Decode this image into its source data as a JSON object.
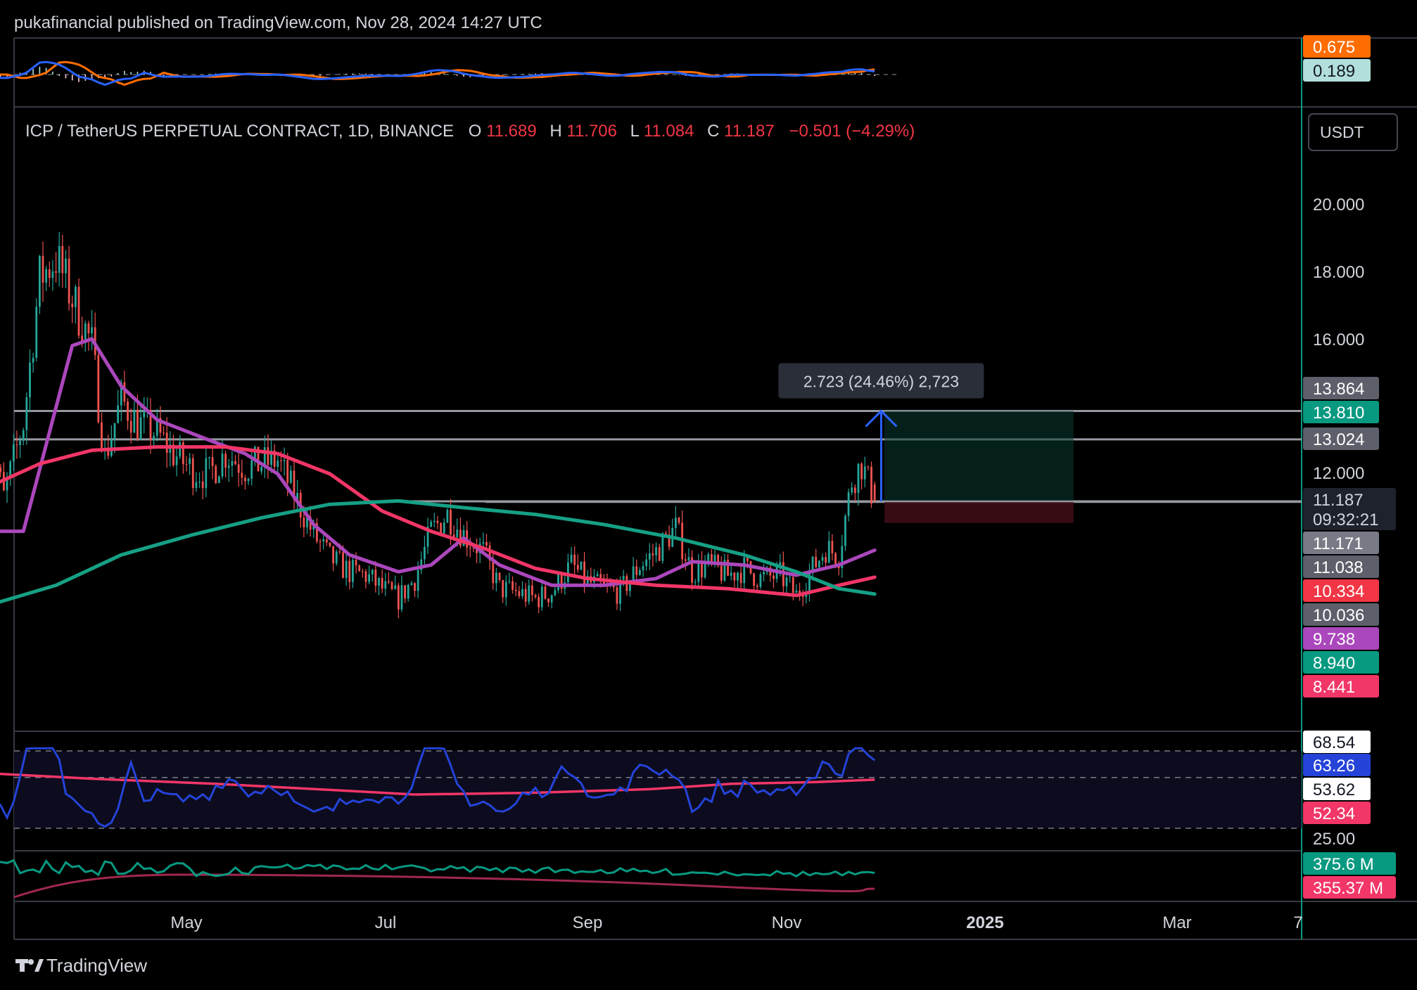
{
  "header": {
    "published": "pukafinancial published on TradingView.com, Nov 28, 2024 14:27 UTC"
  },
  "footer": {
    "brand": "TradingView"
  },
  "symbol": {
    "name": "ICP / TetherUS PERPETUAL CONTRACT, 1D, BINANCE",
    "o_label": "O",
    "o": "11.689",
    "h_label": "H",
    "h": "11.706",
    "l_label": "L",
    "l": "11.084",
    "c_label": "C",
    "c": "11.187",
    "change": "−0.501 (−4.29%)",
    "currency": "USDT"
  },
  "colors": {
    "bg": "#000000",
    "up": "#26a69a",
    "down": "#ef5350",
    "ma_fast": "#ab47bc",
    "ma_mid": "#f23667",
    "ma_slow": "#16a085",
    "macd": "#2962ff",
    "signal": "#ff6d00",
    "rsi": "#2543d8",
    "rsi_ma": "#f23667",
    "measure": "#2962ff",
    "text": "#d1d4dc"
  },
  "price_axis": {
    "ticks": [
      "20.000",
      "18.000",
      "16.000",
      "12.000"
    ],
    "labels": [
      {
        "text": "13.864",
        "bg": "#5d606b",
        "fg": "#ffffff"
      },
      {
        "text": "13.810",
        "bg": "#089981",
        "fg": "#ffffff"
      },
      {
        "text": "13.024",
        "bg": "#5d606b",
        "fg": "#ffffff"
      },
      {
        "text": "11.187",
        "bg": "#1e222d",
        "fg": "#d1d4dc"
      },
      {
        "text": "09:32:21",
        "bg": "#1e222d",
        "fg": "#d1d4dc"
      },
      {
        "text": "11.171",
        "bg": "#787b86",
        "fg": "#ffffff"
      },
      {
        "text": "11.038",
        "bg": "#5d606b",
        "fg": "#ffffff"
      },
      {
        "text": "10.334",
        "bg": "#f23645",
        "fg": "#ffffff"
      },
      {
        "text": "10.036",
        "bg": "#5d606b",
        "fg": "#ffffff"
      },
      {
        "text": "9.738",
        "bg": "#ab47bc",
        "fg": "#ffffff"
      },
      {
        "text": "8.940",
        "bg": "#089981",
        "fg": "#ffffff"
      },
      {
        "text": "8.441",
        "bg": "#f23667",
        "fg": "#ffffff"
      }
    ]
  },
  "macd_axis": {
    "labels": [
      {
        "text": "0.675",
        "bg": "#ff6d00",
        "fg": "#ffffff"
      },
      {
        "text": "0.189",
        "bg": "#b2dfdb",
        "fg": "#131722"
      }
    ]
  },
  "rsi_axis": {
    "labels": [
      {
        "text": "68.54",
        "bg": "#ffffff",
        "fg": "#131722"
      },
      {
        "text": "63.26",
        "bg": "#2543d8",
        "fg": "#ffffff"
      },
      {
        "text": "53.62",
        "bg": "#ffffff",
        "fg": "#131722"
      },
      {
        "text": "52.34",
        "bg": "#f23667",
        "fg": "#ffffff"
      },
      {
        "text": "25.00",
        "bg": "#000000",
        "fg": "#d1d4dc"
      }
    ]
  },
  "vol_axis": {
    "labels": [
      {
        "text": "375.6 M",
        "bg": "#089981",
        "fg": "#ffffff"
      },
      {
        "text": "355.37 M",
        "bg": "#f23667",
        "fg": "#ffffff"
      }
    ]
  },
  "time_axis": {
    "ticks": [
      "May",
      "Jul",
      "Sep",
      "Nov",
      "2025",
      "Mar",
      "7"
    ]
  },
  "measure_label": "2.723 (24.46%) 2,723",
  "chart_data": {
    "type": "candlestick",
    "price_ylim": [
      7.2,
      21.4
    ],
    "horizontal_levels": [
      13.864,
      13.024,
      11.187,
      11.171
    ],
    "position": {
      "entry": 11.187,
      "target": 13.864,
      "stop": 10.55
    },
    "close_path": [
      {
        "date": "2024-03-01",
        "close": 13.4
      },
      {
        "date": "2024-03-06",
        "close": 11.3
      },
      {
        "date": "2024-03-12",
        "close": 13.5
      },
      {
        "date": "2024-03-17",
        "close": 17.8
      },
      {
        "date": "2024-03-22",
        "close": 18.4
      },
      {
        "date": "2024-03-27",
        "close": 17.2
      },
      {
        "date": "2024-04-02",
        "close": 15.8
      },
      {
        "date": "2024-04-06",
        "close": 12.5
      },
      {
        "date": "2024-04-11",
        "close": 14.2
      },
      {
        "date": "2024-04-16",
        "close": 13.5
      },
      {
        "date": "2024-04-22",
        "close": 13.2
      },
      {
        "date": "2024-04-27",
        "close": 12.6
      },
      {
        "date": "2024-05-03",
        "close": 12.1
      },
      {
        "date": "2024-05-08",
        "close": 12.0
      },
      {
        "date": "2024-05-13",
        "close": 12.6
      },
      {
        "date": "2024-05-19",
        "close": 12.2
      },
      {
        "date": "2024-05-24",
        "close": 12.3
      },
      {
        "date": "2024-05-29",
        "close": 12.4
      },
      {
        "date": "2024-06-04",
        "close": 11.2
      },
      {
        "date": "2024-06-09",
        "close": 10.2
      },
      {
        "date": "2024-06-14",
        "close": 9.5
      },
      {
        "date": "2024-06-20",
        "close": 9.1
      },
      {
        "date": "2024-06-25",
        "close": 9.0
      },
      {
        "date": "2024-06-30",
        "close": 8.6
      },
      {
        "date": "2024-07-05",
        "close": 8.3
      },
      {
        "date": "2024-07-10",
        "close": 8.9
      },
      {
        "date": "2024-07-15",
        "close": 10.3
      },
      {
        "date": "2024-07-20",
        "close": 10.8
      },
      {
        "date": "2024-07-25",
        "close": 10.2
      },
      {
        "date": "2024-07-31",
        "close": 9.7
      },
      {
        "date": "2024-08-05",
        "close": 8.6
      },
      {
        "date": "2024-08-10",
        "close": 8.5
      },
      {
        "date": "2024-08-16",
        "close": 8.3
      },
      {
        "date": "2024-08-21",
        "close": 8.5
      },
      {
        "date": "2024-08-27",
        "close": 9.3
      },
      {
        "date": "2024-09-01",
        "close": 8.8
      },
      {
        "date": "2024-09-06",
        "close": 8.6
      },
      {
        "date": "2024-09-11",
        "close": 8.5
      },
      {
        "date": "2024-09-17",
        "close": 9.3
      },
      {
        "date": "2024-09-22",
        "close": 9.7
      },
      {
        "date": "2024-09-28",
        "close": 10.4
      },
      {
        "date": "2024-10-03",
        "close": 9.1
      },
      {
        "date": "2024-10-08",
        "close": 9.3
      },
      {
        "date": "2024-10-14",
        "close": 9.0
      },
      {
        "date": "2024-10-19",
        "close": 9.2
      },
      {
        "date": "2024-10-24",
        "close": 8.9
      },
      {
        "date": "2024-10-30",
        "close": 9.0
      },
      {
        "date": "2024-11-04",
        "close": 8.4
      },
      {
        "date": "2024-11-09",
        "close": 9.2
      },
      {
        "date": "2024-11-13",
        "close": 9.8
      },
      {
        "date": "2024-11-17",
        "close": 9.6
      },
      {
        "date": "2024-11-21",
        "close": 11.8
      },
      {
        "date": "2024-11-24",
        "close": 12.3
      },
      {
        "date": "2024-11-28",
        "close": 11.187
      }
    ],
    "series": [
      {
        "name": "",
        "values": [
          {
            "date": "2024-03-01",
            "v": 10.3
          },
          {
            "date": "2024-03-12",
            "v": 10.3
          },
          {
            "date": "2024-03-27",
            "v": 15.8
          },
          {
            "date": "2024-04-02",
            "v": 16.0
          },
          {
            "date": "2024-04-11",
            "v": 14.6
          },
          {
            "date": "2024-04-22",
            "v": 13.6
          },
          {
            "date": "2024-05-08",
            "v": 13.0
          },
          {
            "date": "2024-05-19",
            "v": 12.6
          },
          {
            "date": "2024-05-29",
            "v": 12.0
          },
          {
            "date": "2024-06-09",
            "v": 10.5
          },
          {
            "date": "2024-06-20",
            "v": 9.6
          },
          {
            "date": "2024-07-05",
            "v": 9.1
          },
          {
            "date": "2024-07-15",
            "v": 9.3
          },
          {
            "date": "2024-07-25",
            "v": 10.1
          },
          {
            "date": "2024-08-05",
            "v": 9.3
          },
          {
            "date": "2024-08-21",
            "v": 8.7
          },
          {
            "date": "2024-09-06",
            "v": 8.7
          },
          {
            "date": "2024-09-22",
            "v": 8.9
          },
          {
            "date": "2024-10-03",
            "v": 9.4
          },
          {
            "date": "2024-10-19",
            "v": 9.3
          },
          {
            "date": "2024-11-04",
            "v": 9.0
          },
          {
            "date": "2024-11-17",
            "v": 9.3
          },
          {
            "date": "2024-11-28",
            "v": 9.74
          }
        ]
      },
      {
        "name": "",
        "values": [
          {
            "date": "2024-03-01",
            "v": 11.6
          },
          {
            "date": "2024-03-17",
            "v": 12.3
          },
          {
            "date": "2024-04-02",
            "v": 12.7
          },
          {
            "date": "2024-04-22",
            "v": 12.8
          },
          {
            "date": "2024-05-13",
            "v": 12.8
          },
          {
            "date": "2024-05-29",
            "v": 12.6
          },
          {
            "date": "2024-06-14",
            "v": 12.0
          },
          {
            "date": "2024-06-30",
            "v": 10.9
          },
          {
            "date": "2024-07-15",
            "v": 10.3
          },
          {
            "date": "2024-07-31",
            "v": 9.8
          },
          {
            "date": "2024-08-16",
            "v": 9.2
          },
          {
            "date": "2024-09-01",
            "v": 8.9
          },
          {
            "date": "2024-09-22",
            "v": 8.7
          },
          {
            "date": "2024-10-14",
            "v": 8.6
          },
          {
            "date": "2024-11-04",
            "v": 8.4
          },
          {
            "date": "2024-11-17",
            "v": 8.7
          },
          {
            "date": "2024-11-28",
            "v": 8.94
          }
        ]
      },
      {
        "name": "",
        "values": [
          {
            "date": "2024-03-01",
            "v": 8.1
          },
          {
            "date": "2024-03-22",
            "v": 8.7
          },
          {
            "date": "2024-04-11",
            "v": 9.6
          },
          {
            "date": "2024-05-03",
            "v": 10.2
          },
          {
            "date": "2024-05-24",
            "v": 10.7
          },
          {
            "date": "2024-06-14",
            "v": 11.1
          },
          {
            "date": "2024-07-05",
            "v": 11.2
          },
          {
            "date": "2024-07-25",
            "v": 11.0
          },
          {
            "date": "2024-08-16",
            "v": 10.8
          },
          {
            "date": "2024-09-06",
            "v": 10.5
          },
          {
            "date": "2024-09-28",
            "v": 10.1
          },
          {
            "date": "2024-10-19",
            "v": 9.6
          },
          {
            "date": "2024-11-04",
            "v": 9.1
          },
          {
            "date": "2024-11-17",
            "v": 8.6
          },
          {
            "date": "2024-11-28",
            "v": 8.44
          }
        ]
      }
    ],
    "rsi": {
      "ylim": [
        20,
        75
      ],
      "bands": [
        68.54,
        53.62,
        25.0
      ],
      "rsi_last": 63.26,
      "ma_last": 52.34
    },
    "macd": {
      "macd_last": 0.189,
      "signal_last": 0.675
    },
    "volume": {
      "last": "375.6 M",
      "ma_last": "355.37 M"
    }
  }
}
